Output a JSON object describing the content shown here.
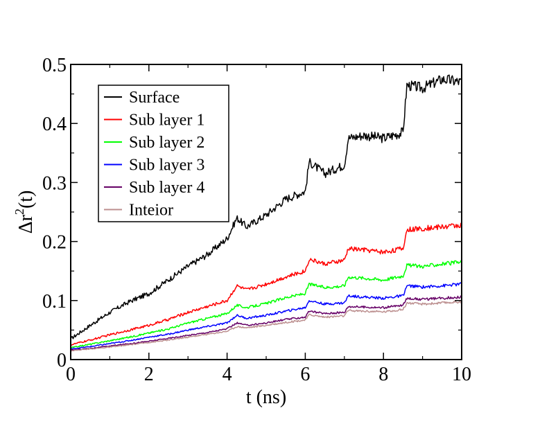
{
  "chart_data": {
    "type": "line",
    "title": "",
    "xlabel": "t (ns)",
    "ylabel_main": "Δr",
    "ylabel_sup": "2",
    "ylabel_tail": "(t)",
    "xlim": [
      0,
      10
    ],
    "ylim": [
      0,
      0.5
    ],
    "xticks": [
      0,
      2,
      4,
      6,
      8,
      10
    ],
    "xtick_labels": [
      "0",
      "2",
      "4",
      "6",
      "8",
      "10"
    ],
    "yticks": [
      0,
      0.1,
      0.2,
      0.3,
      0.4,
      0.5
    ],
    "ytick_labels": [
      "0",
      "0.1",
      "0.2",
      "0.3",
      "0.4",
      "0.5"
    ],
    "grid": false,
    "legend_position": "top-left",
    "x": [
      0,
      0.5,
      1,
      1.5,
      2,
      2.5,
      3,
      3.5,
      4,
      4.25,
      4.5,
      5,
      5.5,
      6,
      6.1,
      6.5,
      7,
      7.1,
      7.5,
      8,
      8.5,
      8.6,
      9,
      9.5,
      10
    ],
    "series": [
      {
        "name": "Surface",
        "color": "#000000",
        "values": [
          0.035,
          0.058,
          0.08,
          0.098,
          0.112,
          0.135,
          0.158,
          0.178,
          0.205,
          0.24,
          0.225,
          0.245,
          0.272,
          0.285,
          0.335,
          0.315,
          0.33,
          0.375,
          0.38,
          0.375,
          0.385,
          0.465,
          0.46,
          0.475,
          0.47
        ]
      },
      {
        "name": "Sub layer 1",
        "color": "#ff0000",
        "values": [
          0.025,
          0.033,
          0.042,
          0.05,
          0.058,
          0.068,
          0.08,
          0.09,
          0.1,
          0.125,
          0.118,
          0.128,
          0.14,
          0.15,
          0.17,
          0.162,
          0.168,
          0.188,
          0.186,
          0.182,
          0.188,
          0.22,
          0.222,
          0.225,
          0.228
        ]
      },
      {
        "name": "Sub layer 2",
        "color": "#00ff00",
        "values": [
          0.02,
          0.026,
          0.032,
          0.038,
          0.045,
          0.052,
          0.062,
          0.07,
          0.078,
          0.092,
          0.088,
          0.095,
          0.105,
          0.112,
          0.128,
          0.122,
          0.125,
          0.14,
          0.138,
          0.135,
          0.142,
          0.16,
          0.158,
          0.162,
          0.165
        ]
      },
      {
        "name": "Sub layer 3",
        "color": "#0000ff",
        "values": [
          0.018,
          0.022,
          0.027,
          0.032,
          0.038,
          0.043,
          0.05,
          0.056,
          0.062,
          0.075,
          0.07,
          0.075,
          0.082,
          0.088,
          0.1,
          0.094,
          0.096,
          0.108,
          0.106,
          0.104,
          0.108,
          0.125,
          0.123,
          0.125,
          0.128
        ]
      },
      {
        "name": "Sub layer 4",
        "color": "#660066",
        "values": [
          0.016,
          0.019,
          0.023,
          0.027,
          0.031,
          0.036,
          0.041,
          0.046,
          0.052,
          0.062,
          0.058,
          0.062,
          0.068,
          0.072,
          0.082,
          0.078,
          0.08,
          0.09,
          0.089,
          0.088,
          0.092,
          0.104,
          0.102,
          0.104,
          0.106
        ]
      },
      {
        "name": "Inteior",
        "color": "#bc8f8f",
        "values": [
          0.015,
          0.018,
          0.021,
          0.025,
          0.029,
          0.033,
          0.038,
          0.043,
          0.048,
          0.056,
          0.054,
          0.058,
          0.063,
          0.067,
          0.076,
          0.072,
          0.074,
          0.083,
          0.082,
          0.081,
          0.085,
          0.096,
          0.094,
          0.096,
          0.098
        ]
      }
    ]
  }
}
